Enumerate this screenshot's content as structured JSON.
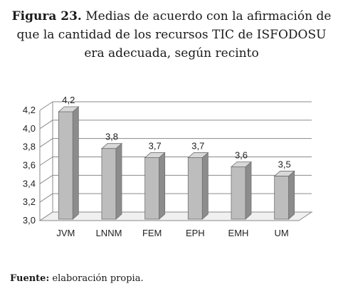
{
  "figure": {
    "label": "Figura 23.",
    "title_line1": "Medias de acuerdo con la afirmación de",
    "title_line2": "que la cantidad de los recursos TIC de ISFODOSU",
    "title_line3": "era adecuada, según recinto"
  },
  "source": {
    "label": "Fuente:",
    "text": "elaboración propia."
  },
  "chart_data": {
    "type": "bar",
    "categories": [
      "JVM",
      "LNNM",
      "FEM",
      "EPH",
      "EMH",
      "UM"
    ],
    "values": [
      4.2,
      3.8,
      3.7,
      3.7,
      3.6,
      3.5
    ],
    "value_labels": [
      "4,2",
      "3,8",
      "3,7",
      "3,7",
      "3,6",
      "3,5"
    ],
    "yticks": [
      "3,0",
      "3,2",
      "3,4",
      "3,6",
      "3,8",
      "4,0",
      "4,2"
    ],
    "ylim": [
      3.0,
      4.2
    ],
    "grid": true,
    "style": "3d",
    "bar_color": "#bdbdbd"
  }
}
